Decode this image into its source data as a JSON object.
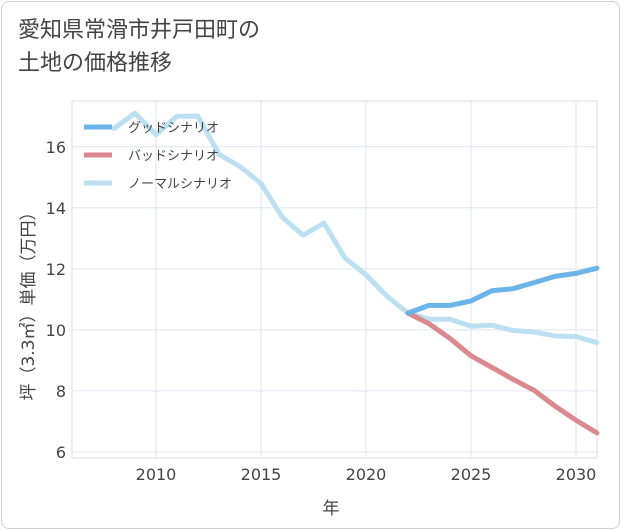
{
  "title_line1": "愛知県常滑市井戸田町の",
  "title_line2": "土地の価格推移",
  "chart_data": {
    "type": "line",
    "title": "愛知県常滑市井戸田町の土地の価格推移",
    "xlabel": "年",
    "ylabel": "坪（3.3㎡）単価（万円）",
    "xlim": [
      2006,
      2031
    ],
    "ylim": [
      5.8,
      17.5
    ],
    "xticks": [
      2010,
      2015,
      2020,
      2025,
      2030
    ],
    "yticks": [
      6,
      8,
      10,
      12,
      14,
      16
    ],
    "grid": true,
    "legend_position": "top-left",
    "series": [
      {
        "name": "グッドシナリオ",
        "color": "#6ab4ea",
        "x": [
          2022,
          2023,
          2024,
          2025,
          2026,
          2027,
          2028,
          2029,
          2030,
          2031
        ],
        "values": [
          10.55,
          10.8,
          10.8,
          10.95,
          11.28,
          11.35,
          11.55,
          11.75,
          11.85,
          12.02
        ]
      },
      {
        "name": "バッドシナリオ",
        "color": "#dc8890",
        "x": [
          2022,
          2023,
          2024,
          2025,
          2026,
          2027,
          2028,
          2029,
          2030,
          2031
        ],
        "values": [
          10.55,
          10.2,
          9.72,
          9.15,
          8.77,
          8.38,
          8.02,
          7.5,
          7.04,
          6.62
        ]
      },
      {
        "name": "ノーマルシナリオ",
        "color": "#bde0f0",
        "x": [
          2008,
          2009,
          2010,
          2011,
          2012,
          2013,
          2014,
          2015,
          2016,
          2017,
          2018,
          2019,
          2020,
          2021,
          2022,
          2023,
          2024,
          2025,
          2026,
          2027,
          2028,
          2029,
          2030,
          2031
        ],
        "values": [
          16.6,
          17.1,
          16.4,
          17.0,
          17.0,
          15.75,
          15.35,
          14.8,
          13.7,
          13.1,
          13.5,
          12.35,
          11.8,
          11.1,
          10.55,
          10.35,
          10.35,
          10.12,
          10.15,
          9.98,
          9.93,
          9.8,
          9.78,
          9.58
        ]
      }
    ]
  }
}
